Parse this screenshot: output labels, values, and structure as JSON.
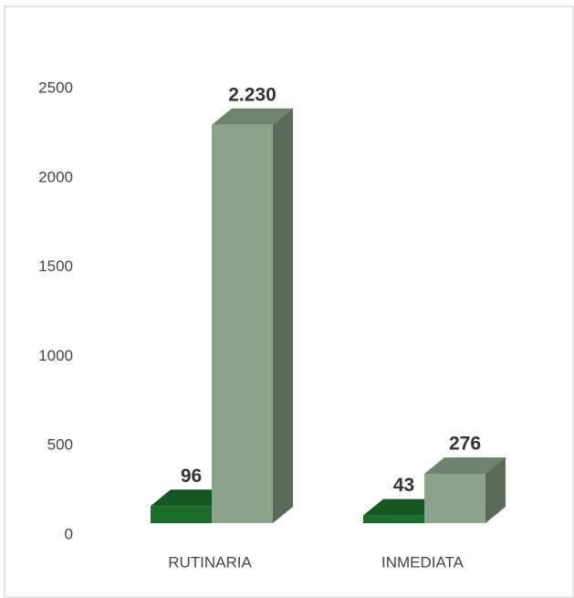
{
  "chart_data": {
    "type": "bar3d",
    "categories": [
      "RUTINARIA",
      "INMEDIATA"
    ],
    "series": [
      {
        "color": "#1b6b2b",
        "values": [
          96,
          43
        ],
        "value_labels": [
          "96",
          "43"
        ]
      },
      {
        "color": "#8aa38a",
        "values": [
          2230,
          276
        ],
        "value_labels": [
          "2.230",
          "276"
        ]
      }
    ],
    "ylim": [
      0,
      2500
    ],
    "yticks": [
      0,
      500,
      1000,
      1500,
      2000,
      2500
    ]
  }
}
